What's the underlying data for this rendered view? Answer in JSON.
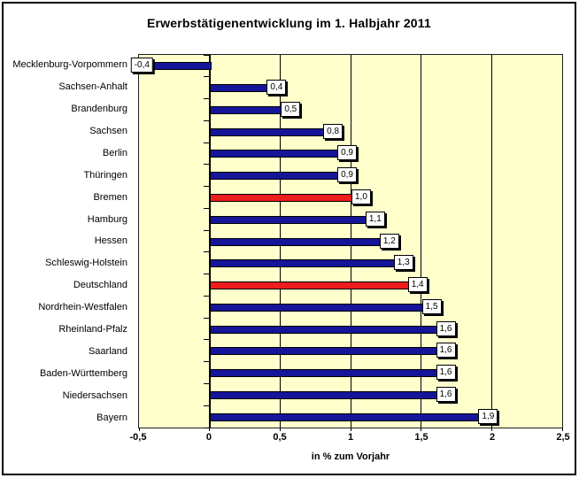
{
  "chart_data": {
    "type": "bar",
    "orientation": "horizontal",
    "title": "Erwerbstätigenentwicklung im 1. Halbjahr 2011",
    "xlabel": "in % zum Vorjahr",
    "categories": [
      "Mecklenburg-Vorpommern",
      "Sachsen-Anhalt",
      "Brandenburg",
      "Sachsen",
      "Berlin",
      "Thüringen",
      "Bremen",
      "Hamburg",
      "Hessen",
      "Schleswig-Holstein",
      "Deutschland",
      "Nordrhein-Westfalen",
      "Rheinland-Pfalz",
      "Saarland",
      "Baden-Württemberg",
      "Niedersachsen",
      "Bayern"
    ],
    "values": [
      -0.4,
      0.4,
      0.5,
      0.8,
      0.9,
      0.9,
      1.0,
      1.1,
      1.2,
      1.3,
      1.4,
      1.5,
      1.6,
      1.6,
      1.6,
      1.6,
      1.9
    ],
    "data_labels": [
      "-0,4",
      "0,4",
      "0,5",
      "0,8",
      "0,9",
      "0,9",
      "1,0",
      "1,1",
      "1,2",
      "1,3",
      "1,4",
      "1,5",
      "1,6",
      "1,6",
      "1,6",
      "1,6",
      "1,9"
    ],
    "highlighted_categories": [
      "Bremen",
      "Deutschland"
    ],
    "xlim": [
      -0.5,
      2.5
    ],
    "xticks": [
      -0.5,
      0,
      0.5,
      1,
      1.5,
      2,
      2.5
    ],
    "xtick_labels": [
      "-0,5",
      "0",
      "0,5",
      "1",
      "1,5",
      "2",
      "2,5"
    ],
    "grid": true,
    "legend": "none",
    "colors": {
      "bar_fill": "#151599",
      "bar_border": "#000000",
      "highlight_fill": "#ee1c1c",
      "plot_bg": "#ffffcc",
      "grid_color": "#000000",
      "background": "#ffffff"
    }
  }
}
